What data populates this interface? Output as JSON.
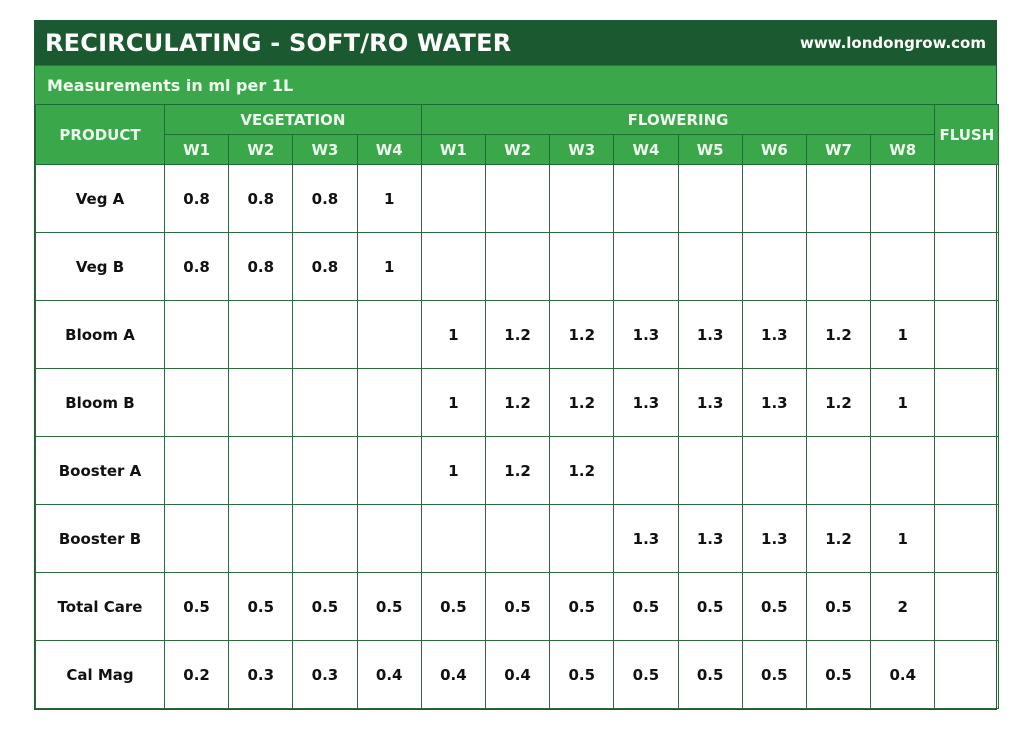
{
  "header": {
    "title": "RECIRCULATING - SOFT/RO WATER",
    "website": "www.londongrow.com",
    "subtitle": "Measurements in ml per 1L"
  },
  "colors": {
    "title_bg": "#1b5a30",
    "header_bg": "#3aa84a",
    "grid": "#2a6a3c"
  },
  "columns": {
    "product": "PRODUCT",
    "vegetation": "VEGETATION",
    "flowering": "FLOWERING",
    "flush": "FLUSH",
    "veg_weeks": [
      "W1",
      "W2",
      "W3",
      "W4"
    ],
    "flower_weeks": [
      "W1",
      "W2",
      "W3",
      "W4",
      "W5",
      "W6",
      "W7",
      "W8"
    ]
  },
  "rows": [
    {
      "product": "Veg A",
      "veg": [
        "0.8",
        "0.8",
        "0.8",
        "1"
      ],
      "flower": [
        "",
        "",
        "",
        "",
        "",
        "",
        "",
        ""
      ],
      "flush": ""
    },
    {
      "product": "Veg B",
      "veg": [
        "0.8",
        "0.8",
        "0.8",
        "1"
      ],
      "flower": [
        "",
        "",
        "",
        "",
        "",
        "",
        "",
        ""
      ],
      "flush": ""
    },
    {
      "product": "Bloom A",
      "veg": [
        "",
        "",
        "",
        ""
      ],
      "flower": [
        "1",
        "1.2",
        "1.2",
        "1.3",
        "1.3",
        "1.3",
        "1.2",
        "1"
      ],
      "flush": ""
    },
    {
      "product": "Bloom B",
      "veg": [
        "",
        "",
        "",
        ""
      ],
      "flower": [
        "1",
        "1.2",
        "1.2",
        "1.3",
        "1.3",
        "1.3",
        "1.2",
        "1"
      ],
      "flush": ""
    },
    {
      "product": "Booster A",
      "veg": [
        "",
        "",
        "",
        ""
      ],
      "flower": [
        "1",
        "1.2",
        "1.2",
        "",
        "",
        "",
        "",
        ""
      ],
      "flush": ""
    },
    {
      "product": "Booster B",
      "veg": [
        "",
        "",
        "",
        ""
      ],
      "flower": [
        "",
        "",
        "",
        "1.3",
        "1.3",
        "1.3",
        "1.2",
        "1"
      ],
      "flush": ""
    },
    {
      "product": "Total Care",
      "veg": [
        "0.5",
        "0.5",
        "0.5",
        "0.5"
      ],
      "flower": [
        "0.5",
        "0.5",
        "0.5",
        "0.5",
        "0.5",
        "0.5",
        "0.5",
        "2"
      ],
      "flush": ""
    },
    {
      "product": "Cal Mag",
      "veg": [
        "0.2",
        "0.3",
        "0.3",
        "0.4"
      ],
      "flower": [
        "0.4",
        "0.4",
        "0.5",
        "0.5",
        "0.5",
        "0.5",
        "0.5",
        "0.4"
      ],
      "flush": ""
    }
  ]
}
